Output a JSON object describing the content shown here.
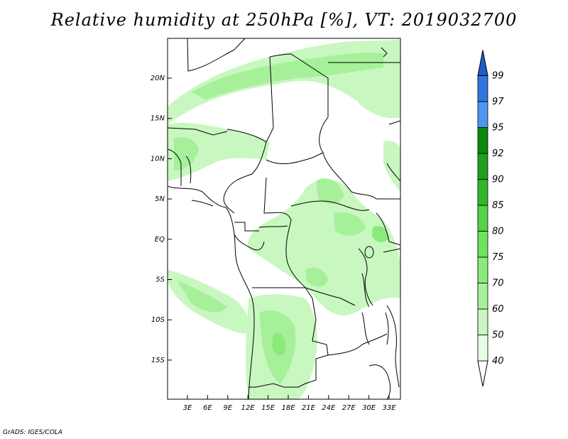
{
  "title": "Relative humidity at 250hPa [%], VT: 2019032700",
  "credit": "GrADS: IGES/COLA",
  "map": {
    "lat_ticks": [
      "20N",
      "15N",
      "10N",
      "5N",
      "EQ",
      "5S",
      "10S",
      "15S"
    ],
    "lon_ticks": [
      "3E",
      "6E",
      "9E",
      "12E",
      "15E",
      "18E",
      "21E",
      "24E",
      "27E",
      "30E",
      "33E"
    ]
  },
  "colorbar": {
    "levels": [
      "40",
      "50",
      "60",
      "70",
      "75",
      "80",
      "85",
      "90",
      "92",
      "95",
      "97",
      "99"
    ],
    "colors": [
      "#ffffff",
      "#e8fde6",
      "#c8f7c0",
      "#a6f09a",
      "#8aea7c",
      "#6fe25e",
      "#52d446",
      "#30b82a",
      "#1ea11c",
      "#0c8a10",
      "#4d97f0",
      "#2e77e0",
      "#1c5dc8"
    ]
  }
}
